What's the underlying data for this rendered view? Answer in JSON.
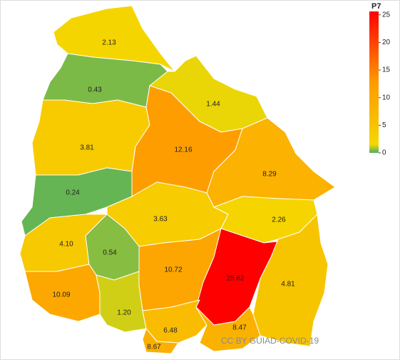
{
  "chart_data": {
    "type": "choropleth",
    "values": [
      2.13,
      0.43,
      1.44,
      3.81,
      12.16,
      8.29,
      0.24,
      3.63,
      2.26,
      4.1,
      0.54,
      10.72,
      25.62,
      4.81,
      10.09,
      1.2,
      6.48,
      8.47,
      8.67
    ],
    "value_labels": [
      "2.13",
      "0.43",
      "1.44",
      "3.81",
      "12.16",
      "8.29",
      "0.24",
      "3.63",
      "2.26",
      "4.10",
      "0.54",
      "10.72",
      "25.62",
      "4.81",
      "10.09",
      "1.20",
      "6.48",
      "8.47",
      "8.67"
    ],
    "colorbar_title": "P7",
    "clim": [
      0,
      25.62
    ],
    "cticks": [
      0,
      5,
      10,
      15,
      20,
      25
    ],
    "colorscale": [
      [
        0,
        "#4caf63"
      ],
      [
        0.06,
        "#f5d800"
      ],
      [
        0.22,
        "#f8c000"
      ],
      [
        0.5,
        "#ff9a00"
      ],
      [
        1,
        "#ff0000"
      ]
    ],
    "credit": "CC BY GUIAD-COVID-19"
  }
}
